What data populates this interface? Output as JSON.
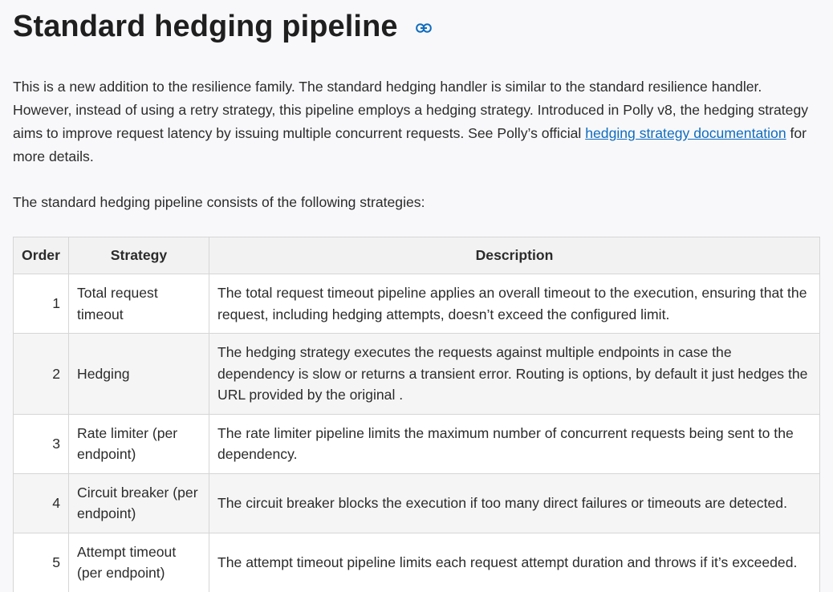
{
  "header": {
    "title": "Standard hedging pipeline"
  },
  "intro": {
    "text_before_link": "This is a new addition to the resilience family. The standard hedging handler is similar to the standard resilience handler. However, instead of using a retry strategy, this pipeline employs a hedging strategy. Introduced in Polly v8, the hedging strategy aims to improve request latency by issuing multiple concurrent requests. See Polly’s official ",
    "link_text": "hedging strategy documentation",
    "text_after_link": " for more details."
  },
  "lead": "The standard hedging pipeline consists of the following strategies:",
  "table": {
    "headers": [
      "Order",
      "Strategy",
      "Description"
    ],
    "rows": [
      {
        "order": "1",
        "strategy": "Total request timeout",
        "description": "The total request timeout pipeline applies an overall timeout to the execution, ensuring that the request, including hedging attempts, doesn’t exceed the configured limit."
      },
      {
        "order": "2",
        "strategy": "Hedging",
        "description": "The hedging strategy executes the requests against multiple endpoints in case the dependency is slow or returns a transient error. Routing is options, by default it just hedges the URL provided by the original ."
      },
      {
        "order": "3",
        "strategy": "Rate limiter (per endpoint)",
        "description": "The rate limiter pipeline limits the maximum number of concurrent requests being sent to the dependency."
      },
      {
        "order": "4",
        "strategy": "Circuit breaker (per endpoint)",
        "description": "The circuit breaker blocks the execution if too many direct failures or timeouts are detected."
      },
      {
        "order": "5",
        "strategy": "Attempt timeout (per endpoint)",
        "description": "The attempt timeout pipeline limits each request attempt duration and throws if it’s exceeded."
      }
    ]
  },
  "icons": {
    "anchor": "link-icon"
  },
  "colors": {
    "link": "#0f6cbd",
    "header_bg": "#f2f2f2",
    "stripe_bg": "#f5f5f5",
    "border": "#d6d6d6"
  }
}
